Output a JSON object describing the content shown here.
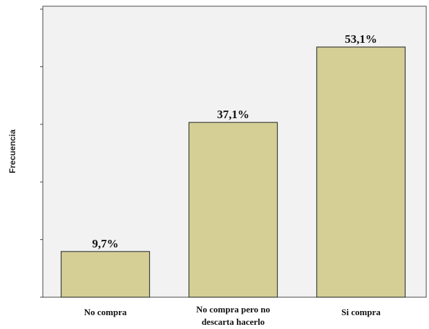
{
  "chart_data": {
    "type": "bar",
    "title": "",
    "xlabel": "",
    "ylabel": "Frecuencia",
    "categories": [
      [
        "No compra"
      ],
      [
        "No compra pero no",
        "descarta hacerlo"
      ],
      [
        "Si compra"
      ]
    ],
    "values": [
      9.7,
      37.1,
      53.1
    ],
    "data_labels": [
      "9,7%",
      "37,1%",
      "53,1%"
    ],
    "ylim": [
      0,
      60
    ],
    "y_ticks": [
      0,
      10,
      20,
      30,
      40,
      50,
      60
    ],
    "y_tick_labels_shown": false,
    "grid": false,
    "legend": "none",
    "colors": {
      "bar_fill": "#d5cf96",
      "bar_stroke": "#3a3a3a",
      "plot_background": "#f2f2f2",
      "axis": "#444444"
    }
  }
}
